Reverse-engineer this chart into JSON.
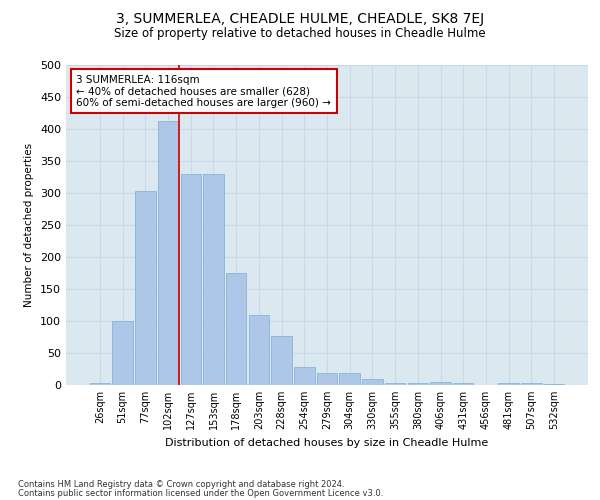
{
  "title": "3, SUMMERLEA, CHEADLE HULME, CHEADLE, SK8 7EJ",
  "subtitle": "Size of property relative to detached houses in Cheadle Hulme",
  "xlabel": "Distribution of detached houses by size in Cheadle Hulme",
  "ylabel": "Number of detached properties",
  "bar_labels": [
    "26sqm",
    "51sqm",
    "77sqm",
    "102sqm",
    "127sqm",
    "153sqm",
    "178sqm",
    "203sqm",
    "228sqm",
    "254sqm",
    "279sqm",
    "304sqm",
    "330sqm",
    "355sqm",
    "380sqm",
    "406sqm",
    "431sqm",
    "456sqm",
    "481sqm",
    "507sqm",
    "532sqm"
  ],
  "bar_values": [
    3,
    100,
    303,
    413,
    330,
    330,
    175,
    110,
    76,
    28,
    18,
    18,
    10,
    3,
    3,
    5,
    3,
    0,
    3,
    3,
    1
  ],
  "bar_color": "#aec6e8",
  "bar_edge_color": "#7bafd4",
  "annotation_text_line1": "3 SUMMERLEA: 116sqm",
  "annotation_text_line2": "← 40% of detached houses are smaller (628)",
  "annotation_text_line3": "60% of semi-detached houses are larger (960) →",
  "annotation_box_facecolor": "#ffffff",
  "annotation_box_edgecolor": "#cc0000",
  "grid_color": "#c8d8e8",
  "bg_color": "#dce8f0",
  "marker_line_color": "#cc0000",
  "ylim": [
    0,
    500
  ],
  "yticks": [
    0,
    50,
    100,
    150,
    200,
    250,
    300,
    350,
    400,
    450,
    500
  ],
  "footer_line1": "Contains HM Land Registry data © Crown copyright and database right 2024.",
  "footer_line2": "Contains public sector information licensed under the Open Government Licence v3.0."
}
